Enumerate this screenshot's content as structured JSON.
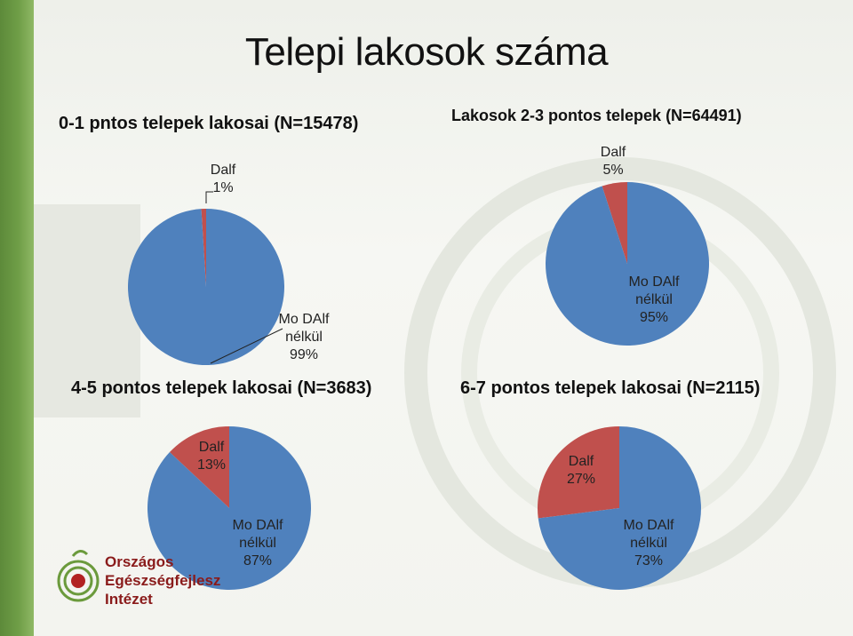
{
  "page": {
    "title": "Telepi lakosok száma",
    "logo_lines": [
      "Országos",
      "Egészségfejlesz",
      "Intézet"
    ]
  },
  "colors": {
    "slice_main": "#4f81bd",
    "slice_small": "#c0504d",
    "left_bar": "#6f9e47"
  },
  "chart_data": [
    {
      "type": "pie",
      "title": "0-1 pntos telepek lakosai (N=15478)",
      "slices": [
        {
          "label": "Dalf",
          "percent_label": "1%",
          "value": 1
        },
        {
          "label": "Mo DAlf nélkül",
          "percent_label": "99%",
          "value": 99
        }
      ]
    },
    {
      "type": "pie",
      "title": "Lakosok 2-3 pontos telepek (N=64491)",
      "slices": [
        {
          "label": "Dalf",
          "percent_label": "5%",
          "value": 5
        },
        {
          "label": "Mo DAlf nélkül",
          "percent_label": "95%",
          "value": 95
        }
      ]
    },
    {
      "type": "pie",
      "title": "4-5 pontos telepek lakosai (N=3683)",
      "slices": [
        {
          "label": "Dalf",
          "percent_label": "13%",
          "value": 13
        },
        {
          "label": "Mo DAlf nélkül",
          "percent_label": "87%",
          "value": 87
        }
      ]
    },
    {
      "type": "pie",
      "title": "6-7 pontos telepek lakosai (N=2115)",
      "slices": [
        {
          "label": "Dalf",
          "percent_label": "27%",
          "value": 27
        },
        {
          "label": "Mo DAlf nélkül",
          "percent_label": "73%",
          "value": 73
        }
      ]
    }
  ]
}
